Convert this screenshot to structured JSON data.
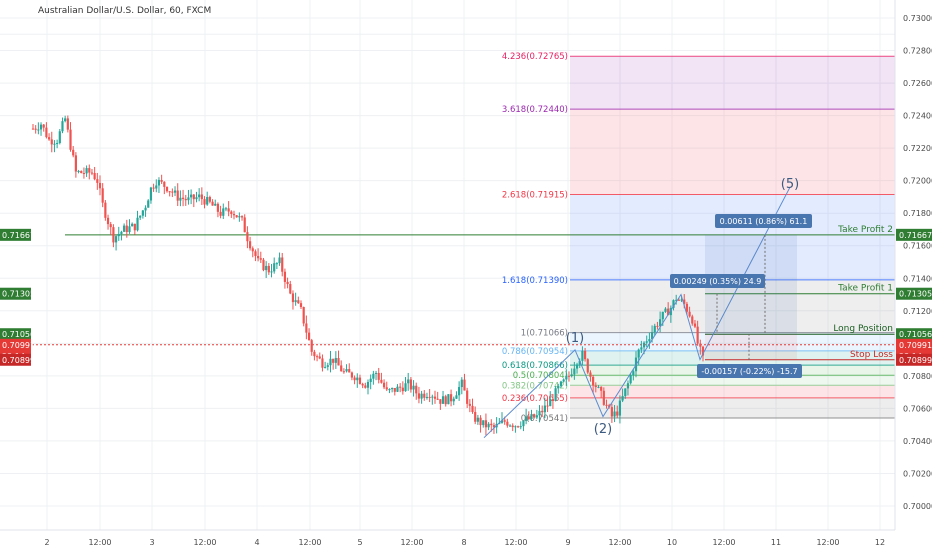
{
  "title": "Australian Dollar/U.S. Dollar, 60, FXCM",
  "chart_data": {
    "type": "candlestick",
    "ylim": [
      0.698,
      0.7305
    ],
    "y_ticks": [
      "0.70000",
      "0.70200",
      "0.70400",
      "0.70600",
      "0.70800",
      "0.71000",
      "0.71200",
      "0.71400",
      "0.71600",
      "0.71800",
      "0.72000",
      "0.72200",
      "0.72400",
      "0.72600",
      "0.72800",
      "0.73000"
    ],
    "x_ticks": [
      "2",
      "12:00",
      "3",
      "12:00",
      "4",
      "12:00",
      "5",
      "12:00",
      "8",
      "12:00",
      "9",
      "12:00",
      "10",
      "12:00",
      "11",
      "12:00",
      "12"
    ],
    "path": [
      [
        0,
        0.7232
      ],
      [
        3,
        0.7235
      ],
      [
        6,
        0.7225
      ],
      [
        9,
        0.7225
      ],
      [
        12,
        0.7238
      ],
      [
        16,
        0.7205
      ],
      [
        22,
        0.7205
      ],
      [
        24,
        0.72
      ],
      [
        26,
        0.7185
      ],
      [
        28,
        0.7175
      ],
      [
        30,
        0.7165
      ],
      [
        34,
        0.717
      ],
      [
        38,
        0.7172
      ],
      [
        42,
        0.7185
      ],
      [
        44,
        0.7195
      ],
      [
        46,
        0.72
      ],
      [
        50,
        0.7196
      ],
      [
        54,
        0.719
      ],
      [
        58,
        0.7188
      ],
      [
        62,
        0.719
      ],
      [
        66,
        0.7186
      ],
      [
        70,
        0.718
      ],
      [
        74,
        0.7182
      ],
      [
        78,
        0.7175
      ],
      [
        80,
        0.7165
      ],
      [
        84,
        0.715
      ],
      [
        88,
        0.7145
      ],
      [
        92,
        0.715
      ],
      [
        96,
        0.713
      ],
      [
        100,
        0.712
      ],
      [
        104,
        0.7095
      ],
      [
        108,
        0.7088
      ],
      [
        112,
        0.709
      ],
      [
        116,
        0.7082
      ],
      [
        120,
        0.708
      ],
      [
        124,
        0.7075
      ],
      [
        128,
        0.7082
      ],
      [
        132,
        0.707
      ],
      [
        136,
        0.7072
      ],
      [
        140,
        0.7075
      ],
      [
        144,
        0.7068
      ],
      [
        148,
        0.707
      ],
      [
        152,
        0.7065
      ],
      [
        156,
        0.7066
      ],
      [
        160,
        0.7075
      ],
      [
        164,
        0.7055
      ],
      [
        168,
        0.705
      ],
      [
        172,
        0.7048
      ],
      [
        176,
        0.7052
      ],
      [
        180,
        0.705
      ],
      [
        184,
        0.7053
      ],
      [
        188,
        0.7055
      ],
      [
        192,
        0.7062
      ],
      [
        196,
        0.7072
      ],
      [
        200,
        0.708
      ],
      [
        203,
        0.709
      ],
      [
        205,
        0.7093
      ],
      [
        208,
        0.708
      ],
      [
        212,
        0.7068
      ],
      [
        216,
        0.7055
      ],
      [
        218,
        0.7058
      ],
      [
        222,
        0.7075
      ],
      [
        226,
        0.7095
      ],
      [
        230,
        0.7105
      ],
      [
        234,
        0.7115
      ],
      [
        238,
        0.7122
      ],
      [
        240,
        0.7128
      ],
      [
        243,
        0.7124
      ],
      [
        246,
        0.7115
      ],
      [
        248,
        0.71
      ],
      [
        250,
        0.709
      ]
    ],
    "fib_levels": [
      {
        "ratio": "0",
        "price": 0.70541,
        "color": "#757575"
      },
      {
        "ratio": "0.236",
        "price": 0.70665,
        "color": "#f23645"
      },
      {
        "ratio": "0.382",
        "price": 0.70742,
        "color": "#81c784"
      },
      {
        "ratio": "0.5",
        "price": 0.70804,
        "color": "#4caf50"
      },
      {
        "ratio": "0.618",
        "price": 0.70866,
        "color": "#089981"
      },
      {
        "ratio": "0.786",
        "price": 0.70954,
        "color": "#64b5f6"
      },
      {
        "ratio": "1",
        "price": 0.71066,
        "color": "#787b86"
      },
      {
        "ratio": "1.618",
        "price": 0.7139,
        "color": "#2962ff"
      },
      {
        "ratio": "2.618",
        "price": 0.71915,
        "color": "#f23645"
      },
      {
        "ratio": "3.618",
        "price": 0.7244,
        "color": "#9c27b0"
      },
      {
        "ratio": "4.236",
        "price": 0.72765,
        "color": "#e91e63"
      }
    ],
    "fib_labels": [
      "0(0.70541)",
      "0.236(0.70665)",
      "0.382(0.70742)",
      "0.5(0.70804)",
      "0.618(0.70866)",
      "0.786(0.70954)",
      "1(0.71066)",
      "1.618(0.71390)",
      "2.618(0.71915)",
      "3.618(0.72440)",
      "4.236(0.72765)"
    ],
    "lines": [
      {
        "name": "Take Profit 2",
        "price": 0.71667,
        "color": "#2e7d32"
      },
      {
        "name": "Take Profit 1",
        "price": 0.71305,
        "color": "#2e7d32"
      },
      {
        "name": "Long Position",
        "price": 0.71056,
        "color": "#1b5e20"
      },
      {
        "name": "Stop Loss",
        "price": 0.70899,
        "color": "#c62828"
      }
    ],
    "price_tags": [
      {
        "text": "0.71667",
        "color": "#2e7d32"
      },
      {
        "text": "0.71305",
        "color": "#2e7d32"
      },
      {
        "text": "0.71056",
        "color": "#2e7d32"
      },
      {
        "text": "0.70991",
        "color": "#e53935"
      },
      {
        "text": "23:14",
        "color": "#e53935"
      },
      {
        "text": "0.70899",
        "color": "#c62828"
      }
    ],
    "current_price": 0.70991,
    "waves": [
      {
        "label": "(1)",
        "price": 0.7096
      },
      {
        "label": "(2)",
        "price": 0.7037
      },
      {
        "label": "(5)",
        "price": 0.7196
      }
    ],
    "boxes": [
      {
        "text": "0.00611 (0.86%) 61.1",
        "color": "#4a76b0"
      },
      {
        "text": "0.00249 (0.35%) 24.9",
        "color": "#4a76b0"
      },
      {
        "text": "-0.00157 (-0.22%) -15.7",
        "color": "#4a76b0"
      }
    ]
  }
}
